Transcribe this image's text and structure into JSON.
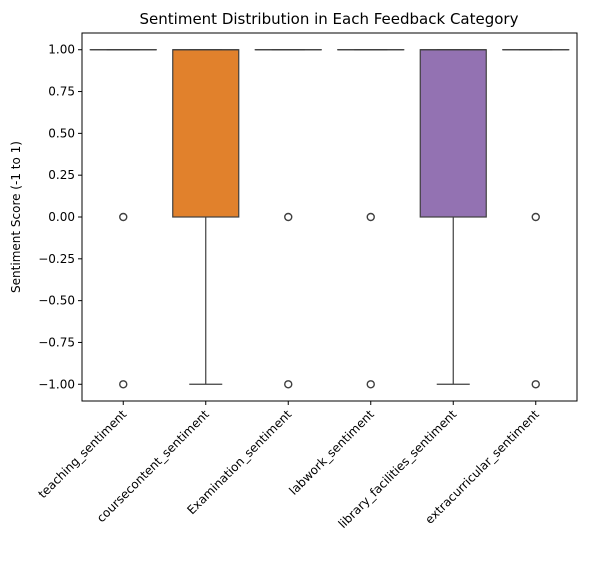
{
  "chart_data": {
    "type": "box",
    "title": "Sentiment Distribution in Each Feedback Category",
    "xlabel": "",
    "ylabel": "Sentiment Score (-1 to 1)",
    "ylim": [
      -1.1,
      1.1
    ],
    "yticks": [
      1.0,
      0.75,
      0.5,
      0.25,
      0.0,
      -0.25,
      -0.5,
      -0.75,
      -1.0
    ],
    "ytick_labels": [
      "1.00",
      "0.75",
      "0.50",
      "0.25",
      "0.00",
      "−0.25",
      "−0.50",
      "−0.75",
      "−1.00"
    ],
    "grid": false,
    "legend": "none",
    "categories": [
      "teaching_sentiment",
      "coursecontent_sentiment",
      "Examination_sentiment",
      "labwork_sentiment",
      "library_facilities_sentiment",
      "extracurricular_sentiment"
    ],
    "boxes": [
      {
        "q1": 1.0,
        "median": 1.0,
        "q3": 1.0,
        "whisker_low": 1.0,
        "whisker_high": 1.0,
        "outliers": [
          0.0,
          -1.0
        ],
        "color": "#3274a1"
      },
      {
        "q1": 0.0,
        "median": 1.0,
        "q3": 1.0,
        "whisker_low": -1.0,
        "whisker_high": 1.0,
        "outliers": [],
        "color": "#e1812c"
      },
      {
        "q1": 1.0,
        "median": 1.0,
        "q3": 1.0,
        "whisker_low": 1.0,
        "whisker_high": 1.0,
        "outliers": [
          0.0,
          -1.0
        ],
        "color": "#3a923a"
      },
      {
        "q1": 1.0,
        "median": 1.0,
        "q3": 1.0,
        "whisker_low": 1.0,
        "whisker_high": 1.0,
        "outliers": [
          0.0,
          -1.0
        ],
        "color": "#c03d3e"
      },
      {
        "q1": 0.0,
        "median": 1.0,
        "q3": 1.0,
        "whisker_low": -1.0,
        "whisker_high": 1.0,
        "outliers": [],
        "color": "#9372b2"
      },
      {
        "q1": 1.0,
        "median": 1.0,
        "q3": 1.0,
        "whisker_low": 1.0,
        "whisker_high": 1.0,
        "outliers": [
          0.0,
          -1.0
        ],
        "color": "#845b53"
      }
    ]
  }
}
